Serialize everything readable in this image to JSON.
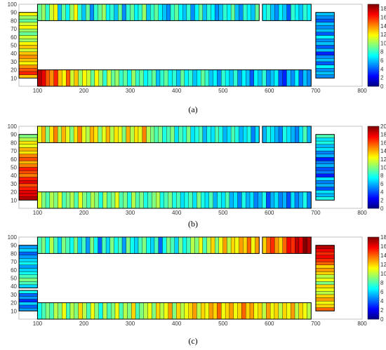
{
  "chart_data": [
    {
      "type": "heatmap",
      "caption": "(a)",
      "x_ticks": [
        100,
        200,
        300,
        400,
        500,
        600,
        700,
        800
      ],
      "y_ticks": [
        10,
        20,
        30,
        40,
        50,
        60,
        70,
        80,
        90,
        100
      ],
      "xlim": [
        60,
        800
      ],
      "ylim": [
        0,
        100
      ],
      "colorbar": {
        "min": 0,
        "max": 19,
        "ticks": [
          0,
          2,
          4,
          6,
          8,
          10,
          12,
          14,
          16,
          18
        ]
      },
      "left_block": [
        13,
        16,
        15,
        14,
        12,
        13,
        14,
        13,
        11,
        13,
        12,
        10,
        11,
        9,
        10,
        12,
        11,
        9,
        10,
        12
      ],
      "right_block": [
        5,
        6,
        5,
        7,
        4,
        6,
        5,
        3,
        6,
        4,
        6,
        5,
        7,
        4,
        6,
        5,
        6,
        4,
        5,
        6
      ],
      "top_strip": [
        9,
        10,
        8,
        11,
        12,
        6,
        9,
        7,
        10,
        12,
        8,
        6,
        9,
        5,
        8,
        9,
        10,
        7,
        8,
        6,
        9,
        5,
        8,
        9,
        7,
        8,
        10,
        6,
        8,
        9,
        7,
        6,
        5,
        8,
        9,
        7,
        6,
        8,
        5,
        7,
        9,
        6,
        8,
        7,
        5,
        6,
        8,
        7,
        9,
        6,
        5,
        8,
        7,
        6,
        9,
        7,
        8,
        6,
        5,
        7,
        6,
        4,
        8,
        7,
        6,
        8,
        7
      ],
      "bottom_strip": [
        18,
        17,
        15,
        14,
        16,
        13,
        12,
        15,
        11,
        13,
        10,
        12,
        11,
        9,
        12,
        10,
        8,
        11,
        9,
        10,
        8,
        9,
        7,
        10,
        8,
        9,
        7,
        8,
        9,
        6,
        8,
        9,
        7,
        8,
        6,
        9,
        7,
        8,
        6,
        7,
        9,
        8,
        6,
        7,
        5,
        8,
        7,
        6,
        8,
        5,
        7,
        6,
        4,
        7,
        6,
        8,
        5,
        6,
        7,
        4,
        3,
        6,
        5,
        7,
        4,
        6,
        5
      ]
    },
    {
      "type": "heatmap",
      "caption": "(b)",
      "x_ticks": [
        100,
        200,
        300,
        400,
        500,
        600,
        700,
        800
      ],
      "y_ticks": [
        10,
        20,
        30,
        40,
        50,
        60,
        70,
        80,
        90,
        100
      ],
      "xlim": [
        60,
        800
      ],
      "ylim": [
        0,
        100
      ],
      "colorbar": {
        "min": 0,
        "max": 20,
        "ticks": [
          0,
          2,
          4,
          6,
          8,
          10,
          12,
          14,
          16,
          18,
          20
        ]
      },
      "left_block": [
        19,
        18,
        18,
        17,
        16,
        18,
        17,
        15,
        16,
        17,
        15,
        14,
        16,
        15,
        13,
        14,
        12,
        13,
        11,
        10
      ],
      "right_block": [
        8,
        6,
        7,
        4,
        6,
        5,
        7,
        3,
        5,
        4,
        6,
        5,
        3,
        6,
        5,
        7,
        6,
        8,
        7,
        9
      ],
      "top_strip": [
        12,
        14,
        10,
        13,
        15,
        11,
        14,
        12,
        10,
        13,
        15,
        12,
        11,
        14,
        13,
        10,
        12,
        14,
        11,
        13,
        12,
        10,
        14,
        11,
        13,
        12,
        15,
        11,
        10,
        9,
        10,
        8,
        9,
        10,
        7,
        9,
        8,
        10,
        7,
        8,
        9,
        6,
        8,
        7,
        9,
        8,
        6,
        7,
        9,
        8,
        6,
        7,
        8,
        5,
        7,
        6,
        8,
        7,
        6,
        5,
        8,
        7,
        6,
        5,
        7,
        9,
        6
      ],
      "bottom_strip": [
        12,
        10,
        9,
        11,
        10,
        12,
        9,
        10,
        11,
        9,
        12,
        10,
        9,
        11,
        10,
        8,
        11,
        9,
        10,
        12,
        9,
        10,
        8,
        11,
        9,
        10,
        8,
        9,
        10,
        11,
        8,
        9,
        10,
        8,
        9,
        7,
        8,
        9,
        7,
        10,
        8,
        7,
        9,
        6,
        8,
        7,
        9,
        6,
        7,
        5,
        8,
        6,
        7,
        5,
        6,
        8,
        4,
        6,
        7,
        5,
        6,
        4,
        7,
        5,
        6,
        8,
        5
      ]
    },
    {
      "type": "heatmap",
      "caption": "(c)",
      "x_ticks": [
        100,
        200,
        300,
        400,
        500,
        600,
        700,
        800
      ],
      "y_ticks": [
        10,
        20,
        30,
        40,
        50,
        60,
        70,
        80,
        90,
        100
      ],
      "xlim": [
        60,
        800
      ],
      "ylim": [
        0,
        100
      ],
      "colorbar": {
        "min": 0,
        "max": 18,
        "ticks": [
          0,
          2,
          4,
          6,
          8,
          10,
          12,
          14,
          16,
          18
        ]
      },
      "left_block": [
        5,
        4,
        6,
        3,
        5,
        4,
        7,
        6,
        8,
        9,
        8,
        7,
        6,
        5,
        7,
        6,
        5,
        4,
        6,
        5
      ],
      "right_block": [
        14,
        12,
        11,
        13,
        12,
        10,
        11,
        12,
        9,
        11,
        10,
        12,
        13,
        12,
        14,
        15,
        16,
        15,
        16,
        17
      ],
      "top_strip": [
        8,
        9,
        7,
        10,
        8,
        6,
        9,
        8,
        7,
        9,
        6,
        8,
        5,
        9,
        7,
        4,
        8,
        6,
        9,
        7,
        8,
        5,
        9,
        7,
        6,
        8,
        9,
        7,
        6,
        8,
        4,
        7,
        9,
        8,
        6,
        9,
        7,
        8,
        10,
        9,
        11,
        8,
        10,
        12,
        9,
        11,
        13,
        10,
        12,
        11,
        13,
        12,
        14,
        11,
        13,
        12,
        14,
        15,
        13,
        12,
        14,
        16,
        15,
        17,
        16,
        18,
        17
      ],
      "bottom_strip": [
        7,
        8,
        9,
        8,
        10,
        9,
        11,
        8,
        10,
        9,
        12,
        10,
        8,
        11,
        9,
        7,
        10,
        8,
        9,
        11,
        8,
        10,
        9,
        12,
        8,
        9,
        10,
        11,
        9,
        12,
        10,
        11,
        13,
        9,
        12,
        10,
        11,
        12,
        13,
        10,
        12,
        11,
        13,
        12,
        14,
        11,
        12,
        13,
        11,
        12,
        14,
        12,
        13,
        11,
        12,
        10,
        13,
        11,
        12,
        10,
        12,
        11,
        13,
        10,
        12,
        11,
        10
      ]
    }
  ]
}
